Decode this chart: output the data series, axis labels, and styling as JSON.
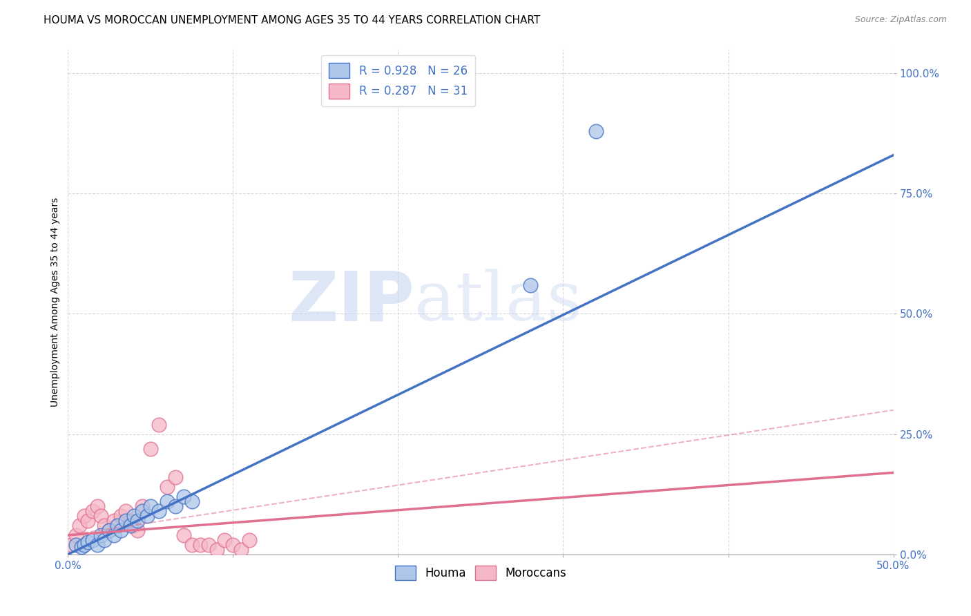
{
  "title": "HOUMA VS MOROCCAN UNEMPLOYMENT AMONG AGES 35 TO 44 YEARS CORRELATION CHART",
  "source": "Source: ZipAtlas.com",
  "ylabel": "Unemployment Among Ages 35 to 44 years",
  "xlim": [
    0.0,
    0.5
  ],
  "ylim": [
    0.0,
    1.05
  ],
  "xticks": [
    0.0,
    0.1,
    0.2,
    0.3,
    0.4,
    0.5
  ],
  "xtick_labels_show": [
    "0.0%",
    "",
    "",
    "",
    "",
    "50.0%"
  ],
  "yticks": [
    0.0,
    0.25,
    0.5,
    0.75,
    1.0
  ],
  "ytick_labels": [
    "0.0%",
    "25.0%",
    "50.0%",
    "75.0%",
    "100.0%"
  ],
  "houma_color": "#aec6e8",
  "moroccan_color": "#f5b8c8",
  "houma_edge_color": "#4472c4",
  "moroccan_edge_color": "#e07090",
  "houma_line_color": "#4472c4",
  "moroccan_line_color": "#e07090",
  "legend_label_houma": "R = 0.928   N = 26",
  "legend_label_moroccan": "R = 0.287   N = 31",
  "watermark_zip": "ZIP",
  "watermark_atlas": "atlas",
  "houma_scatter_x": [
    0.005,
    0.008,
    0.01,
    0.012,
    0.015,
    0.018,
    0.02,
    0.022,
    0.025,
    0.028,
    0.03,
    0.032,
    0.035,
    0.038,
    0.04,
    0.042,
    0.045,
    0.048,
    0.05,
    0.055,
    0.06,
    0.065,
    0.07,
    0.075,
    0.28,
    0.32
  ],
  "houma_scatter_y": [
    0.02,
    0.015,
    0.02,
    0.025,
    0.03,
    0.02,
    0.04,
    0.03,
    0.05,
    0.04,
    0.06,
    0.05,
    0.07,
    0.06,
    0.08,
    0.07,
    0.09,
    0.08,
    0.1,
    0.09,
    0.11,
    0.1,
    0.12,
    0.11,
    0.56,
    0.88
  ],
  "moroccan_scatter_x": [
    0.002,
    0.005,
    0.007,
    0.01,
    0.012,
    0.015,
    0.018,
    0.02,
    0.022,
    0.025,
    0.028,
    0.03,
    0.032,
    0.035,
    0.038,
    0.04,
    0.042,
    0.045,
    0.05,
    0.055,
    0.06,
    0.065,
    0.07,
    0.075,
    0.08,
    0.085,
    0.09,
    0.095,
    0.1,
    0.105,
    0.11
  ],
  "moroccan_scatter_y": [
    0.02,
    0.04,
    0.06,
    0.08,
    0.07,
    0.09,
    0.1,
    0.08,
    0.06,
    0.05,
    0.07,
    0.06,
    0.08,
    0.09,
    0.07,
    0.06,
    0.05,
    0.1,
    0.22,
    0.27,
    0.14,
    0.16,
    0.04,
    0.02,
    0.02,
    0.02,
    0.01,
    0.03,
    0.02,
    0.01,
    0.03
  ],
  "houma_trendline": [
    0.0,
    0.5,
    0.0,
    0.83
  ],
  "moroccan_trendline": [
    0.0,
    0.5,
    0.04,
    0.17
  ],
  "moroccan_dashed": [
    0.0,
    0.5,
    0.04,
    0.3
  ],
  "tick_color": "#4472c4",
  "grid_color": "#cccccc",
  "title_fontsize": 11,
  "axis_label_fontsize": 10,
  "tick_fontsize": 11
}
